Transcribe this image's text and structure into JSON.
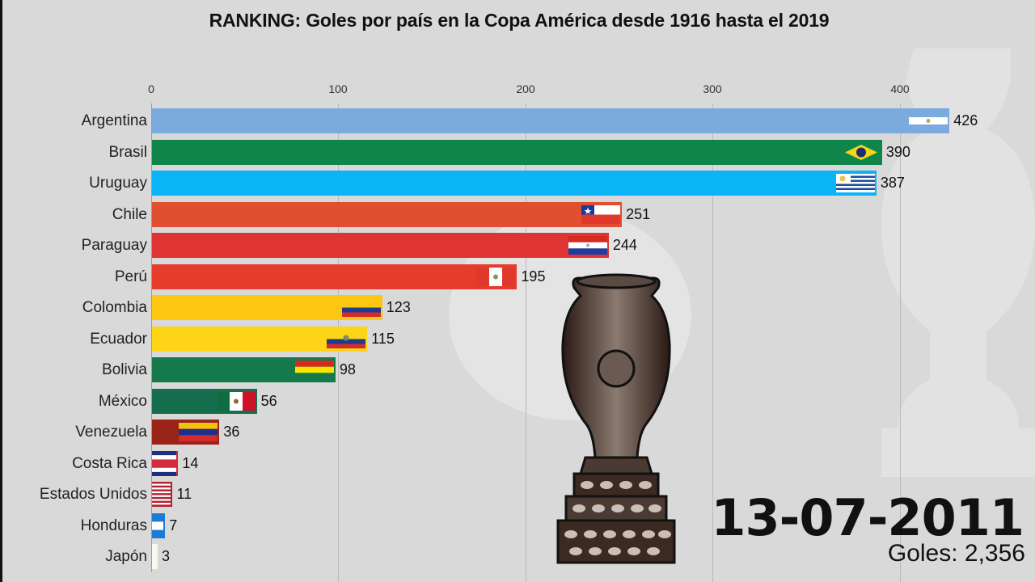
{
  "title": "RANKING: Goles por país en la Copa América desde 1916 hasta el 2019",
  "date": "13-07-2011",
  "total_label": "Goles: 2,356",
  "axis": {
    "ticks": [
      "0",
      "100",
      "200",
      "300",
      "400"
    ]
  },
  "bars": [
    {
      "country": "Argentina",
      "value": "426",
      "color": "#7aaade",
      "flag": "argentina-flag"
    },
    {
      "country": "Brasil",
      "value": "390",
      "color": "#0f854a",
      "flag": "brazil-flag"
    },
    {
      "country": "Uruguay",
      "value": "387",
      "color": "#0bb4f7",
      "flag": "uruguay-flag"
    },
    {
      "country": "Chile",
      "value": "251",
      "color": "#e04f30",
      "flag": "chile-flag"
    },
    {
      "country": "Paraguay",
      "value": "244",
      "color": "#de3434",
      "flag": "paraguay-flag"
    },
    {
      "country": "Perú",
      "value": "195",
      "color": "#e63c2c",
      "flag": "peru-flag"
    },
    {
      "country": "Colombia",
      "value": "123",
      "color": "#fdc611",
      "flag": "colombia-flag"
    },
    {
      "country": "Ecuador",
      "value": "115",
      "color": "#fdd516",
      "flag": "ecuador-flag"
    },
    {
      "country": "Bolivia",
      "value": "98",
      "color": "#147a4c",
      "flag": "bolivia-flag"
    },
    {
      "country": "México",
      "value": "56",
      "color": "#176e4e",
      "flag": "mexico-flag"
    },
    {
      "country": "Venezuela",
      "value": "36",
      "color": "#9b2418",
      "flag": "venezuela-flag"
    },
    {
      "country": "Costa Rica",
      "value": "14",
      "color": "#d22b3c",
      "flag": "costa-rica-flag"
    },
    {
      "country": "Estados Unidos",
      "value": "11",
      "color": "#b22234",
      "flag": "usa-flag"
    },
    {
      "country": "Honduras",
      "value": "7",
      "color": "#1d7bd6",
      "flag": "honduras-flag"
    },
    {
      "country": "Japón",
      "value": "3",
      "color": "#f6f6ea",
      "flag": "japan-flag"
    }
  ],
  "chart_data": {
    "type": "bar",
    "orientation": "horizontal",
    "title": "RANKING: Goles por país en la Copa América desde 1916 hasta el 2019",
    "subtitle": "13-07-2011",
    "annotation": "Goles: 2,356",
    "categories": [
      "Argentina",
      "Brasil",
      "Uruguay",
      "Chile",
      "Paraguay",
      "Perú",
      "Colombia",
      "Ecuador",
      "Bolivia",
      "México",
      "Venezuela",
      "Costa Rica",
      "Estados Unidos",
      "Honduras",
      "Japón"
    ],
    "values": [
      426,
      390,
      387,
      251,
      244,
      195,
      123,
      115,
      98,
      56,
      36,
      14,
      11,
      7,
      3
    ],
    "xlabel": "",
    "ylabel": "",
    "xlim": [
      0,
      430
    ],
    "xticks": [
      0,
      100,
      200,
      300,
      400
    ],
    "grid": true,
    "legend": "none"
  }
}
